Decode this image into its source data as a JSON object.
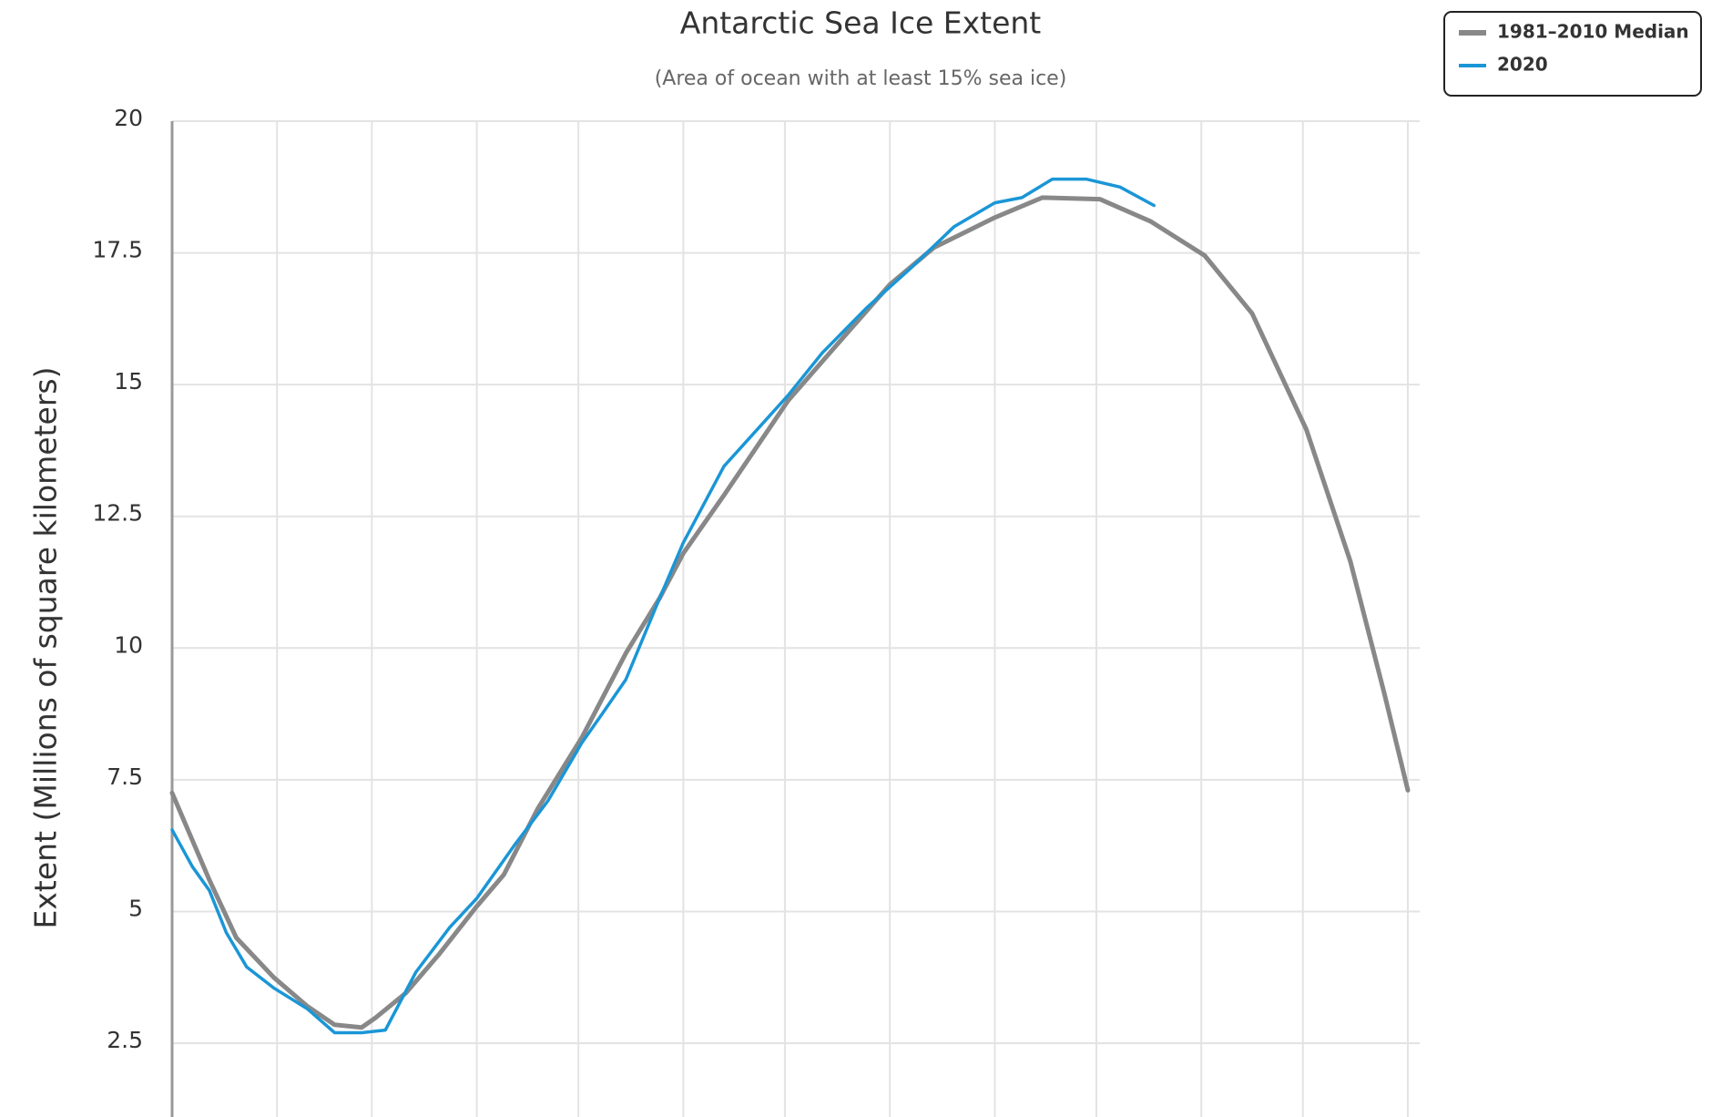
{
  "chart_data": {
    "type": "line",
    "title": "Antarctic Sea Ice Extent",
    "subtitle": "(Area of ocean with at least 15% sea ice)",
    "y_label": "Extent (Millions of square kilometers)",
    "xlim": [
      1,
      366
    ],
    "xticks": [
      1,
      32,
      60,
      91,
      121,
      152,
      182,
      213,
      244,
      274,
      305,
      335,
      366
    ],
    "ylim": [
      1.1,
      20
    ],
    "yticks": [
      2.5,
      5,
      7.5,
      10,
      12.5,
      15,
      17.5,
      20
    ],
    "grid": true,
    "legend": "top-right",
    "series": [
      {
        "name": "1981–2010 Median",
        "color": "#888888",
        "x": [
          1,
          12,
          20,
          31,
          41,
          49,
          57,
          61,
          70,
          80,
          91,
          99,
          109,
          122,
          135,
          145,
          152,
          164,
          183,
          200,
          213,
          226,
          244,
          258,
          275,
          290,
          306,
          320,
          336,
          349,
          359,
          366
        ],
        "values": [
          7.25,
          5.6,
          4.5,
          3.75,
          3.2,
          2.85,
          2.8,
          2.98,
          3.45,
          4.2,
          5.1,
          5.7,
          6.95,
          8.3,
          9.9,
          10.95,
          11.8,
          12.9,
          14.7,
          15.95,
          16.9,
          17.6,
          18.17,
          18.55,
          18.52,
          18.1,
          17.45,
          16.35,
          14.15,
          11.65,
          9.15,
          7.3
        ]
      },
      {
        "name": "2020",
        "color": "#1a96d6",
        "x": [
          1,
          7,
          12,
          17,
          23,
          31,
          41,
          49,
          57,
          64,
          73,
          83,
          91,
          102,
          112,
          122,
          128,
          135,
          145,
          152,
          164,
          183,
          193,
          206,
          219,
          232,
          244,
          252,
          261,
          271,
          281,
          291
        ],
        "values": [
          6.55,
          5.85,
          5.4,
          4.6,
          3.95,
          3.55,
          3.15,
          2.7,
          2.7,
          2.75,
          3.85,
          4.7,
          5.25,
          6.25,
          7.1,
          8.2,
          8.75,
          9.4,
          10.95,
          12.0,
          13.45,
          14.8,
          15.6,
          16.45,
          17.2,
          18.0,
          18.45,
          18.55,
          18.9,
          18.9,
          18.75,
          18.4
        ]
      }
    ]
  }
}
